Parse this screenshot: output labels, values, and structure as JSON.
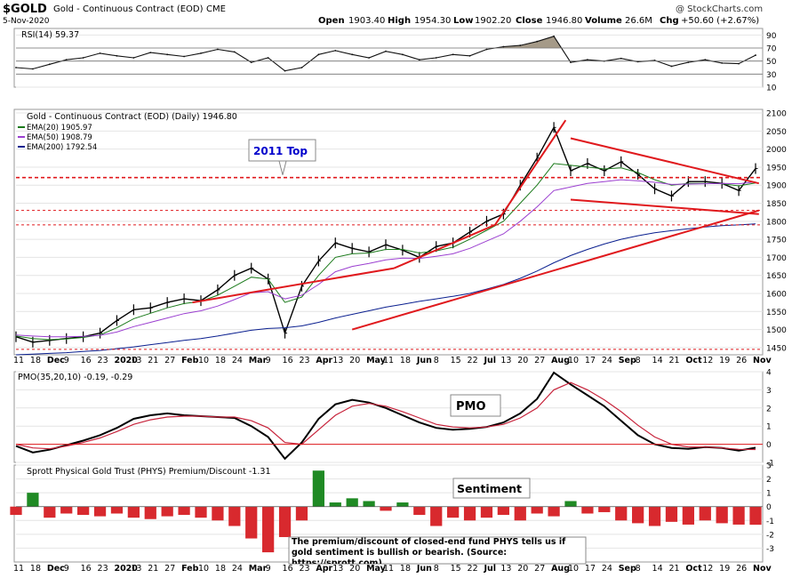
{
  "header": {
    "symbol": "$GOLD",
    "name": "Gold - Continuous Contract (EOD)",
    "exchange": "CME",
    "date": "5-Nov-2020",
    "watermark": "@ StockCharts.com",
    "open_label": "Open",
    "open": "1903.40",
    "high_label": "High",
    "high": "1954.30",
    "low_label": "Low",
    "low": "1902.20",
    "close_label": "Close",
    "close": "1946.80",
    "volume_label": "Volume",
    "volume": "26.6M",
    "chg_label": "Chg",
    "chg": "+50.60 (+2.67%)"
  },
  "colors": {
    "price_bars": "#000000",
    "ema20": "#1b7a1b",
    "ema50": "#9b3fd0",
    "ema200": "#0a1f8f",
    "trendline": "#e0191d",
    "annotation_box": "#0000cc",
    "rsi_fill": "#a59a88",
    "pmo": "#000000",
    "pmo_signal": "#c7233b",
    "premium_pos": "#1f8a24",
    "premium_neg": "#d8292e"
  },
  "chart_data": [
    {
      "type": "line",
      "title": "RSI(14) 59.37",
      "ylim": [
        10,
        100
      ],
      "yticks": [
        "90",
        "70",
        "50",
        "30",
        "10"
      ],
      "reference_lines": [
        70,
        50,
        30
      ],
      "x": [
        "11",
        "18",
        "Dec",
        "9",
        "16",
        "23",
        "2020",
        "13",
        "21",
        "27",
        "Feb",
        "10",
        "18",
        "24",
        "Mar",
        "9",
        "16",
        "23",
        "Apr",
        "13",
        "20",
        "May",
        "11",
        "18",
        "Jun",
        "8",
        "15",
        "22",
        "Jul",
        "13",
        "20",
        "27",
        "Aug",
        "10",
        "17",
        "24",
        "Sep",
        "8",
        "14",
        "21",
        "Oct",
        "12",
        "19",
        "26",
        "Nov"
      ],
      "series": [
        {
          "name": "RSI(14)",
          "values": [
            40,
            38,
            45,
            52,
            55,
            62,
            58,
            55,
            63,
            60,
            57,
            62,
            68,
            64,
            48,
            55,
            35,
            40,
            60,
            66,
            60,
            55,
            65,
            60,
            52,
            55,
            60,
            58,
            68,
            72,
            74,
            80,
            88,
            48,
            52,
            50,
            54,
            49,
            51,
            42,
            48,
            52,
            47,
            46,
            59
          ]
        }
      ]
    },
    {
      "type": "line",
      "title": "Gold - Continuous Contract (EOD) (Daily) 1946.80",
      "ylim": [
        1430,
        2110
      ],
      "yticks": [
        "2100",
        "2050",
        "2000",
        "1950",
        "1900",
        "1850",
        "1800",
        "1750",
        "1700",
        "1650",
        "1600",
        "1550",
        "1500",
        "1450"
      ],
      "x": [
        "11",
        "18",
        "Dec",
        "9",
        "16",
        "23",
        "2020",
        "13",
        "21",
        "27",
        "Feb",
        "10",
        "18",
        "24",
        "Mar",
        "9",
        "16",
        "23",
        "Apr",
        "13",
        "20",
        "May",
        "11",
        "18",
        "Jun",
        "8",
        "15",
        "22",
        "Jul",
        "13",
        "20",
        "27",
        "Aug",
        "10",
        "17",
        "24",
        "Sep",
        "8",
        "14",
        "21",
        "Oct",
        "12",
        "19",
        "26",
        "Nov"
      ],
      "series": [
        {
          "name": "Gold - Continuous Contract (EOD) (Daily) 1946.80",
          "values": [
            1480,
            1465,
            1470,
            1475,
            1480,
            1490,
            1525,
            1555,
            1560,
            1575,
            1585,
            1580,
            1610,
            1650,
            1670,
            1640,
            1490,
            1620,
            1690,
            1740,
            1725,
            1715,
            1735,
            1720,
            1700,
            1730,
            1740,
            1770,
            1800,
            1820,
            1900,
            1975,
            2060,
            1940,
            1960,
            1940,
            1965,
            1930,
            1890,
            1870,
            1910,
            1910,
            1905,
            1885,
            1946
          ]
        },
        {
          "name": "EMA(20) 1905.97",
          "values": [
            1482,
            1475,
            1472,
            1474,
            1478,
            1485,
            1505,
            1530,
            1545,
            1560,
            1572,
            1578,
            1595,
            1620,
            1645,
            1640,
            1575,
            1590,
            1650,
            1700,
            1710,
            1712,
            1722,
            1722,
            1712,
            1718,
            1728,
            1750,
            1775,
            1800,
            1850,
            1900,
            1960,
            1955,
            1950,
            1945,
            1948,
            1935,
            1915,
            1900,
            1905,
            1905,
            1904,
            1898,
            1906
          ]
        },
        {
          "name": "EMA(50) 1908.79",
          "values": [
            1485,
            1482,
            1480,
            1480,
            1481,
            1484,
            1493,
            1508,
            1520,
            1532,
            1544,
            1552,
            1565,
            1583,
            1602,
            1605,
            1585,
            1595,
            1625,
            1660,
            1675,
            1683,
            1693,
            1698,
            1697,
            1703,
            1710,
            1725,
            1745,
            1765,
            1800,
            1840,
            1885,
            1895,
            1905,
            1910,
            1915,
            1912,
            1908,
            1902,
            1903,
            1904,
            1905,
            1904,
            1909
          ]
        },
        {
          "name": "EMA(200) 1792.54",
          "values": [
            1430,
            1432,
            1434,
            1436,
            1439,
            1442,
            1447,
            1452,
            1458,
            1464,
            1470,
            1475,
            1482,
            1490,
            1498,
            1503,
            1505,
            1510,
            1520,
            1532,
            1542,
            1552,
            1562,
            1570,
            1578,
            1585,
            1592,
            1600,
            1612,
            1625,
            1642,
            1662,
            1685,
            1705,
            1722,
            1737,
            1750,
            1760,
            1768,
            1774,
            1779,
            1784,
            1788,
            1790,
            1793
          ]
        }
      ],
      "annotations": [
        {
          "text": "2011 Top",
          "y": 1921
        }
      ],
      "horizontal_lines": [
        1921,
        1830,
        1790,
        1445
      ]
    },
    {
      "type": "line",
      "title": "PMO(35,20,10) -0.19, -0.29",
      "ylim": [
        -1,
        4
      ],
      "yticks": [
        "4",
        "3",
        "2",
        "1",
        "0",
        "-1"
      ],
      "reference_lines": [
        0
      ],
      "x": [
        "11",
        "18",
        "Dec",
        "9",
        "16",
        "23",
        "2020",
        "13",
        "21",
        "27",
        "Feb",
        "10",
        "18",
        "24",
        "Mar",
        "9",
        "16",
        "23",
        "Apr",
        "13",
        "20",
        "May",
        "11",
        "18",
        "Jun",
        "8",
        "15",
        "22",
        "Jul",
        "13",
        "20",
        "27",
        "Aug",
        "10",
        "17",
        "24",
        "Sep",
        "8",
        "14",
        "21",
        "Oct",
        "12",
        "19",
        "26",
        "Nov"
      ],
      "series": [
        {
          "name": "PMO",
          "values": [
            -0.1,
            -0.45,
            -0.3,
            -0.05,
            0.2,
            0.5,
            0.9,
            1.4,
            1.6,
            1.7,
            1.6,
            1.55,
            1.5,
            1.45,
            1.0,
            0.4,
            -0.8,
            0.1,
            1.4,
            2.2,
            2.45,
            2.3,
            2.0,
            1.6,
            1.2,
            0.9,
            0.8,
            0.85,
            0.95,
            1.2,
            1.7,
            2.5,
            3.95,
            3.3,
            2.7,
            2.1,
            1.3,
            0.5,
            0.0,
            -0.2,
            -0.25,
            -0.15,
            -0.2,
            -0.35,
            -0.19
          ]
        },
        {
          "name": "Signal",
          "values": [
            0.0,
            -0.2,
            -0.25,
            -0.1,
            0.1,
            0.35,
            0.7,
            1.1,
            1.35,
            1.5,
            1.55,
            1.55,
            1.5,
            1.5,
            1.3,
            0.9,
            0.1,
            0.0,
            0.8,
            1.6,
            2.1,
            2.25,
            2.1,
            1.8,
            1.45,
            1.1,
            0.95,
            0.9,
            0.95,
            1.1,
            1.45,
            2.0,
            3.0,
            3.4,
            3.0,
            2.45,
            1.8,
            1.05,
            0.4,
            0.0,
            -0.15,
            -0.15,
            -0.2,
            -0.28,
            -0.29
          ]
        }
      ],
      "annotations": [
        {
          "text": "PMO"
        }
      ]
    },
    {
      "type": "bar",
      "title": "Sprott Physical Gold Trust (PHYS) Premium/Discount -1.31",
      "ylim": [
        -4,
        3
      ],
      "yticks": [
        "3",
        "2",
        "1",
        "0",
        "-1",
        "-2",
        "-3"
      ],
      "x": [
        "11",
        "18",
        "Dec",
        "9",
        "16",
        "23",
        "2020",
        "13",
        "21",
        "27",
        "Feb",
        "10",
        "18",
        "24",
        "Mar",
        "9",
        "16",
        "23",
        "Apr",
        "13",
        "20",
        "May",
        "11",
        "18",
        "Jun",
        "8",
        "15",
        "22",
        "Jul",
        "13",
        "20",
        "27",
        "Aug",
        "10",
        "17",
        "24",
        "Sep",
        "8",
        "14",
        "21",
        "Oct",
        "12",
        "19",
        "26",
        "Nov"
      ],
      "series": [
        {
          "name": "PHYS Premium/Discount",
          "values": [
            -0.6,
            1.0,
            -0.8,
            -0.5,
            -0.6,
            -0.7,
            -0.5,
            -0.8,
            -0.9,
            -0.7,
            -0.6,
            -0.8,
            -1.0,
            -1.4,
            -2.3,
            -3.3,
            -2.2,
            -1.0,
            2.6,
            0.3,
            0.6,
            0.4,
            -0.3,
            0.3,
            -0.6,
            -1.4,
            -0.8,
            -1.0,
            -0.8,
            -0.6,
            -1.0,
            -0.5,
            -0.7,
            0.4,
            -0.5,
            -0.4,
            -1.0,
            -1.2,
            -1.4,
            -1.1,
            -1.3,
            -1.0,
            -1.2,
            -1.3,
            -1.31
          ]
        }
      ],
      "annotations": [
        {
          "text": "Sentiment"
        },
        {
          "text": "The premium/discount of closed-end fund PHYS tells us if gold sentiment is bullish or bearish. (Source: https://sprott.com)"
        }
      ]
    }
  ]
}
